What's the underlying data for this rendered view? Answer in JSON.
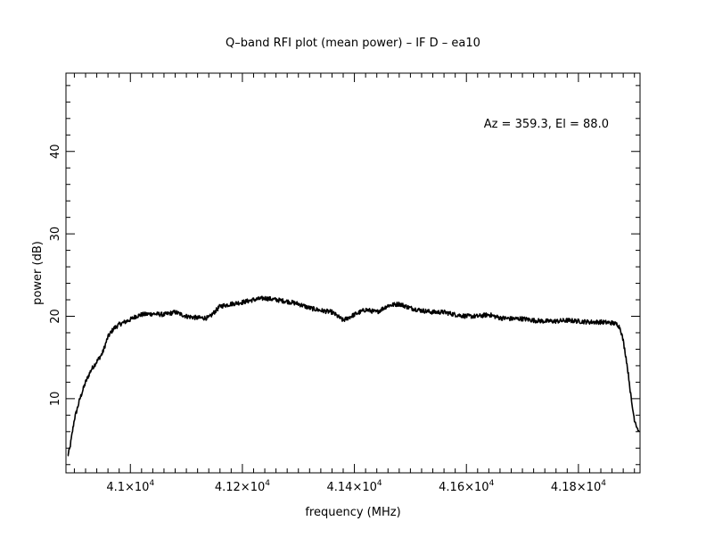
{
  "chart_data": {
    "type": "line",
    "title": "Q–band RFI plot (mean power) – IF D – ea10",
    "xlabel": "frequency (MHz)",
    "ylabel": "power (dB)",
    "annotation": "Az = 359.3, El = 88.0",
    "xlim": [
      40885,
      41910
    ],
    "ylim": [
      1,
      49.5
    ],
    "x_ticks": [
      {
        "value": 41000,
        "mantissa": "4.1",
        "times": "×",
        "base": "10",
        "exp": "4"
      },
      {
        "value": 41200,
        "mantissa": "4.12",
        "times": "×",
        "base": "10",
        "exp": "4"
      },
      {
        "value": 41400,
        "mantissa": "4.14",
        "times": "×",
        "base": "10",
        "exp": "4"
      },
      {
        "value": 41600,
        "mantissa": "4.16",
        "times": "×",
        "base": "10",
        "exp": "4"
      },
      {
        "value": 41800,
        "mantissa": "4.18",
        "times": "×",
        "base": "10",
        "exp": "4"
      }
    ],
    "y_ticks": [
      {
        "value": 10,
        "label": "10"
      },
      {
        "value": 20,
        "label": "20"
      },
      {
        "value": 30,
        "label": "30"
      },
      {
        "value": 40,
        "label": "40"
      }
    ],
    "series": [
      {
        "x": [
          40888,
          40892,
          40900,
          40910,
          40920,
          40930,
          40940,
          40950,
          40960,
          40970,
          40980,
          40990,
          41000,
          41010,
          41020,
          41040,
          41060,
          41080,
          41100,
          41120,
          41140,
          41160,
          41180,
          41200,
          41220,
          41240,
          41260,
          41280,
          41300,
          41320,
          41340,
          41360,
          41380,
          41400,
          41420,
          41440,
          41460,
          41480,
          41500,
          41520,
          41540,
          41560,
          41580,
          41600,
          41620,
          41640,
          41660,
          41680,
          41700,
          41720,
          41740,
          41760,
          41780,
          41800,
          41820,
          41840,
          41860,
          41870,
          41875,
          41880,
          41885,
          41890,
          41895,
          41900,
          41905,
          41908
        ],
        "y": [
          3,
          4,
          7.5,
          10,
          12,
          13.5,
          14.5,
          15.5,
          17.5,
          18.5,
          19,
          19.3,
          19.6,
          20,
          20.2,
          20.3,
          20.2,
          20.5,
          20,
          19.8,
          19.8,
          21.2,
          21.5,
          21.7,
          22,
          22.2,
          22,
          21.8,
          21.5,
          21,
          20.7,
          20.5,
          19.5,
          20.2,
          20.8,
          20.5,
          21.3,
          21.5,
          21,
          20.7,
          20.5,
          20.5,
          20.2,
          20,
          20,
          20.2,
          19.8,
          19.7,
          19.7,
          19.5,
          19.4,
          19.4,
          19.5,
          19.4,
          19.3,
          19.3,
          19.2,
          19,
          18.5,
          17,
          15,
          12.5,
          9.5,
          7.5,
          6.5,
          6
        ]
      }
    ]
  }
}
